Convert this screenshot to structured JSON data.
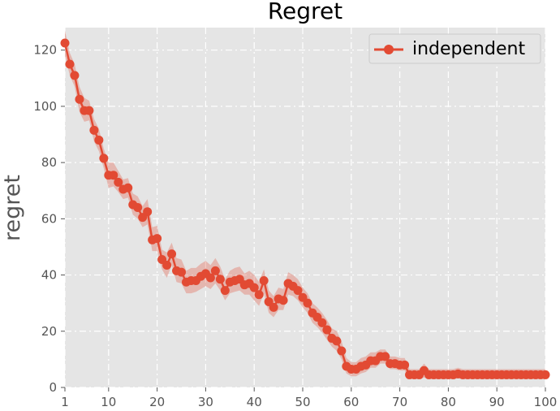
{
  "chart_data": {
    "type": "line",
    "title": "Regret",
    "xlabel": "",
    "ylabel": "regret",
    "xlim": [
      1,
      100
    ],
    "ylim": [
      0,
      128
    ],
    "xticks": [
      1,
      10,
      20,
      30,
      40,
      50,
      60,
      70,
      80,
      90,
      100
    ],
    "yticks": [
      0,
      20,
      40,
      60,
      80,
      100,
      120
    ],
    "grid": true,
    "legend_position": "top-right",
    "colors": {
      "series": "#E24A33",
      "band": "#E24A33",
      "background": "#E5E5E5",
      "grid": "#ffffff"
    },
    "series": [
      {
        "name": "independent",
        "x": [
          1,
          2,
          3,
          4,
          5,
          6,
          7,
          8,
          9,
          10,
          11,
          12,
          13,
          14,
          15,
          16,
          17,
          18,
          19,
          20,
          21,
          22,
          23,
          24,
          25,
          26,
          27,
          28,
          29,
          30,
          31,
          32,
          33,
          34,
          35,
          36,
          37,
          38,
          39,
          40,
          41,
          42,
          43,
          44,
          45,
          46,
          47,
          48,
          49,
          50,
          51,
          52,
          53,
          54,
          55,
          56,
          57,
          58,
          59,
          60,
          61,
          62,
          63,
          64,
          65,
          66,
          67,
          68,
          69,
          70,
          71,
          72,
          73,
          74,
          75,
          76,
          77,
          78,
          79,
          80,
          81,
          82,
          83,
          84,
          85,
          86,
          87,
          88,
          89,
          90,
          91,
          92,
          93,
          94,
          95,
          96,
          97,
          98,
          99,
          100
        ],
        "y": [
          122.5,
          115,
          111,
          102.5,
          98.5,
          98.5,
          91.5,
          88,
          81.5,
          75.5,
          75.5,
          73,
          70.5,
          71,
          65,
          64,
          60.5,
          62.5,
          52.5,
          53,
          45.5,
          43.5,
          47.5,
          41.5,
          41,
          37.5,
          38,
          38,
          39.5,
          40.5,
          39,
          41.5,
          38.5,
          34.5,
          37.5,
          38,
          38.5,
          36.5,
          37,
          35.5,
          33,
          38,
          30.5,
          28.5,
          31.5,
          31,
          37,
          36,
          34.5,
          32,
          30,
          26.5,
          25,
          23,
          20.5,
          17.5,
          16.5,
          13,
          7.5,
          6.5,
          6.5,
          7.5,
          8,
          9.5,
          9.5,
          11,
          11,
          8.5,
          8.5,
          8,
          8,
          4.5,
          4.5,
          4.5,
          6,
          4.5,
          4.5,
          4.5,
          4.5,
          4.5,
          4.5,
          4.8,
          4.5,
          4.5,
          4.5,
          4.5,
          4.5,
          4.5,
          4.5,
          4.5,
          4.5,
          4.5,
          4.5,
          4.5,
          4.5,
          4.5,
          4.5,
          4.5,
          4.5,
          4.5
        ],
        "lower": [
          118,
          111,
          107,
          98,
          94.5,
          95,
          87.5,
          84,
          78,
          71,
          71.5,
          69.5,
          67,
          67.5,
          61.5,
          60,
          57,
          58,
          48.5,
          48.5,
          42,
          39,
          43.5,
          37.5,
          37,
          33.5,
          33.5,
          34,
          35,
          36,
          35,
          37,
          34.5,
          31,
          33.5,
          34,
          34.5,
          33,
          33,
          31,
          29,
          33.5,
          26.5,
          25,
          27.5,
          27.5,
          33,
          32.5,
          31,
          28.5,
          26.5,
          23,
          21.5,
          19.5,
          17,
          14.5,
          13,
          10,
          5,
          4,
          4,
          5,
          5.5,
          7,
          7,
          8.5,
          8.5,
          6.5,
          6.5,
          6,
          6,
          3,
          3,
          3,
          3.5,
          3,
          3,
          3,
          3,
          3,
          3,
          3.2,
          3,
          3,
          3,
          3,
          3,
          3,
          3,
          3,
          3,
          3,
          3,
          3,
          3,
          3,
          3,
          3,
          3,
          3
        ],
        "upper": [
          127,
          119,
          115,
          107,
          103,
          102,
          95.5,
          92,
          85,
          80,
          80,
          77,
          74,
          74.5,
          69,
          68,
          64.5,
          67,
          57,
          57.5,
          49,
          48,
          51.5,
          46,
          45.5,
          41.5,
          42.5,
          42.5,
          44,
          45,
          43.5,
          46,
          43,
          38.5,
          41.5,
          42.5,
          43,
          40.5,
          41.5,
          40,
          37.5,
          42,
          34.5,
          32.5,
          35.5,
          35,
          41,
          40,
          38.5,
          35.5,
          33.5,
          30,
          28.5,
          26.5,
          24,
          21,
          20,
          16.5,
          10.5,
          9,
          9,
          10.5,
          11,
          12.5,
          12.5,
          13.5,
          13.5,
          11,
          11,
          10.5,
          10.5,
          6.5,
          6.5,
          6.5,
          8.5,
          6.5,
          6.5,
          6.5,
          6.5,
          6.5,
          6.5,
          7,
          6.5,
          6.5,
          6.5,
          6.5,
          6.5,
          6.5,
          6.5,
          6.5,
          6.5,
          6.5,
          6.5,
          6.5,
          6.5,
          6.5,
          6.5,
          6.5,
          6.5,
          6.5
        ]
      }
    ]
  }
}
